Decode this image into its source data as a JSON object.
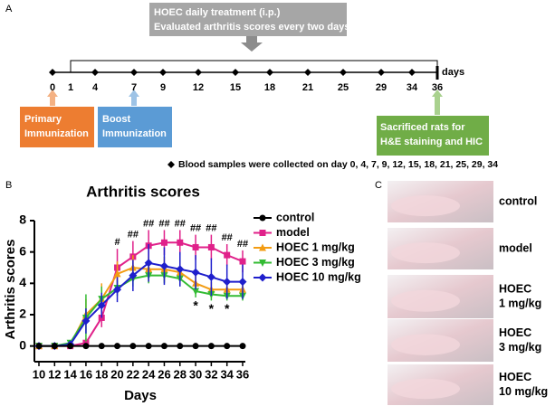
{
  "panel_a": {
    "label": "A",
    "treatment_box": [
      "HOEC daily treatment (i.p.)",
      "Evaluated arthritis scores every two days"
    ],
    "days": [
      0,
      1,
      4,
      7,
      9,
      12,
      15,
      18,
      21,
      25,
      29,
      34,
      36
    ],
    "unit": "days",
    "boxes": [
      [
        "Primary",
        "Immunization"
      ],
      [
        "Boost",
        "Immunization"
      ],
      [
        "Sacrificed rats for",
        "H&E staining and HIC"
      ]
    ],
    "note": "Blood samples were collected on day 0, 4, 7, 9, 12, 15, 18, 21, 25, 29, 34"
  },
  "panel_b": {
    "label": "B"
  },
  "chart_data": {
    "type": "line",
    "title": "Arthritis scores",
    "x_label": "Days",
    "y_label": "Arthritis scores",
    "x": [
      10,
      12,
      14,
      16,
      18,
      20,
      22,
      24,
      26,
      28,
      30,
      32,
      34,
      36
    ],
    "xlim": [
      10,
      36
    ],
    "xticks": [
      10,
      12,
      14,
      16,
      18,
      20,
      22,
      24,
      26,
      28,
      30,
      32,
      34,
      36
    ],
    "ylim": [
      -1,
      8
    ],
    "yticks": [
      0,
      2,
      4,
      6,
      8
    ],
    "series": [
      {
        "name": "control",
        "color": "#000000",
        "marker": "circle",
        "values": [
          0,
          0,
          0,
          0,
          0,
          0,
          0,
          0,
          0,
          0,
          0,
          0,
          0,
          0
        ],
        "errors": [
          0,
          0,
          0,
          0,
          0,
          0,
          0,
          0,
          0,
          0,
          0,
          0,
          0,
          0
        ]
      },
      {
        "name": "model",
        "color": "#e0218a",
        "marker": "square",
        "values": [
          0,
          0,
          0,
          0.2,
          1.8,
          5.0,
          5.7,
          6.4,
          6.6,
          6.6,
          6.3,
          6.3,
          5.8,
          5.4
        ],
        "errors": [
          0,
          0,
          0,
          0.3,
          0.6,
          1.2,
          1.0,
          1.0,
          0.8,
          0.8,
          0.8,
          0.8,
          0.7,
          0.7
        ]
      },
      {
        "name": "HOEC 1 mg/kg",
        "color": "#f39c12",
        "marker": "triangle",
        "values": [
          0,
          0,
          0.1,
          2.0,
          3.0,
          4.6,
          5.0,
          4.9,
          4.9,
          4.7,
          4.0,
          3.6,
          3.6,
          3.6
        ],
        "errors": [
          0,
          0,
          0.1,
          1.0,
          1.0,
          0.8,
          0.8,
          0.8,
          0.8,
          0.8,
          0.5,
          0.5,
          0.5,
          0.5
        ]
      },
      {
        "name": "HOEC 3 mg/kg",
        "color": "#33bb33",
        "marker": "triangle-down",
        "values": [
          0,
          0,
          0.2,
          1.8,
          3.0,
          3.7,
          4.3,
          4.5,
          4.5,
          4.3,
          3.5,
          3.3,
          3.2,
          3.2
        ],
        "errors": [
          0,
          0,
          0.1,
          1.5,
          0.8,
          0.5,
          0.5,
          0.5,
          0.5,
          0.5,
          0.4,
          0.4,
          0.3,
          0.3
        ]
      },
      {
        "name": "HOEC 10 mg/kg",
        "color": "#1f1fcc",
        "marker": "diamond",
        "values": [
          0,
          0,
          0.1,
          1.6,
          2.6,
          3.6,
          4.5,
          5.3,
          5.1,
          4.9,
          4.7,
          4.4,
          4.1,
          4.1
        ],
        "errors": [
          0,
          0,
          0.1,
          0.8,
          0.8,
          0.8,
          1.0,
          1.2,
          1.2,
          1.1,
          1.1,
          1.2,
          1.1,
          1.1
        ]
      }
    ],
    "hash_labels": [
      null,
      null,
      null,
      null,
      null,
      "#",
      "##",
      "##",
      "##",
      "##",
      "##",
      "##",
      "##",
      "##"
    ],
    "star_labels": [
      null,
      null,
      null,
      null,
      null,
      null,
      null,
      null,
      null,
      null,
      "*",
      "*",
      "*",
      null
    ]
  },
  "panel_c": {
    "label": "C",
    "photos": [
      [
        "control"
      ],
      [
        "model"
      ],
      [
        "HOEC",
        "1 mg/kg"
      ],
      [
        "HOEC",
        "3 mg/kg"
      ],
      [
        "HOEC",
        "10 mg/kg"
      ]
    ]
  }
}
